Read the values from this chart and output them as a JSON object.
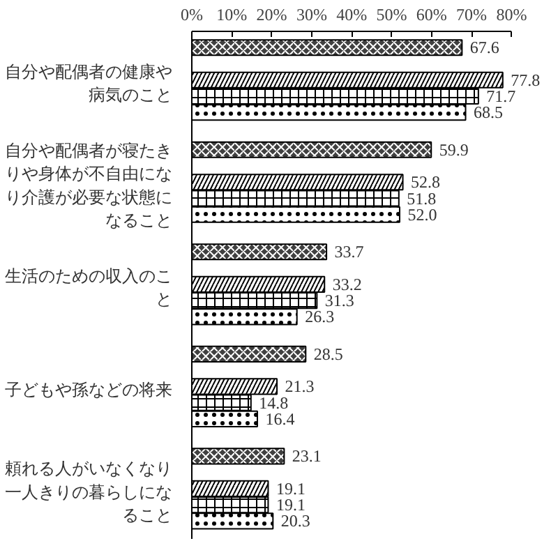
{
  "chart_data": {
    "type": "bar",
    "orientation": "horizontal",
    "categories": [
      "自分や配偶者の健康や病気のこと",
      "自分や配偶者が寝たきりや身体が不自由になり介護が必要な状態になること",
      "生活のための収入のこと",
      "子どもや孫などの将来",
      "頼れる人がいなくなり一人きりの暮らしになること"
    ],
    "series": [
      {
        "color": "#404040",
        "values": [
          67.6,
          59.9,
          33.7,
          28.5,
          23.1
        ],
        "value_labels": [
          "67.6",
          "59.9",
          "33.7",
          "28.5",
          "23.1"
        ]
      },
      {
        "color": "#ffffff",
        "values": [
          77.8,
          52.8,
          33.2,
          21.3,
          19.1
        ],
        "value_labels": [
          "77.8",
          "52.8",
          "33.2",
          "21.3",
          "19.1"
        ]
      },
      {
        "color": "#ffffff",
        "values": [
          71.7,
          51.8,
          31.3,
          14.8,
          19.1
        ],
        "value_labels": [
          "71.7",
          "51.8",
          "31.3",
          "14.8",
          "19.1"
        ]
      },
      {
        "color": "#ffffff",
        "values": [
          68.5,
          52.0,
          26.3,
          16.4,
          20.3
        ],
        "value_labels": [
          "68.5",
          "52.0",
          "26.3",
          "16.4",
          "20.3"
        ]
      }
    ],
    "xlim": [
      0,
      80
    ],
    "xticks": [
      {
        "value": 0,
        "label": "0%"
      },
      {
        "value": 10,
        "label": "10%"
      },
      {
        "value": 20,
        "label": "20%"
      },
      {
        "value": 30,
        "label": "30%"
      },
      {
        "value": 40,
        "label": "40%"
      },
      {
        "value": 50,
        "label": "50%"
      },
      {
        "value": 60,
        "label": "60%"
      },
      {
        "value": 70,
        "label": "70%"
      },
      {
        "value": 80,
        "label": "80%"
      }
    ],
    "grid": false
  }
}
